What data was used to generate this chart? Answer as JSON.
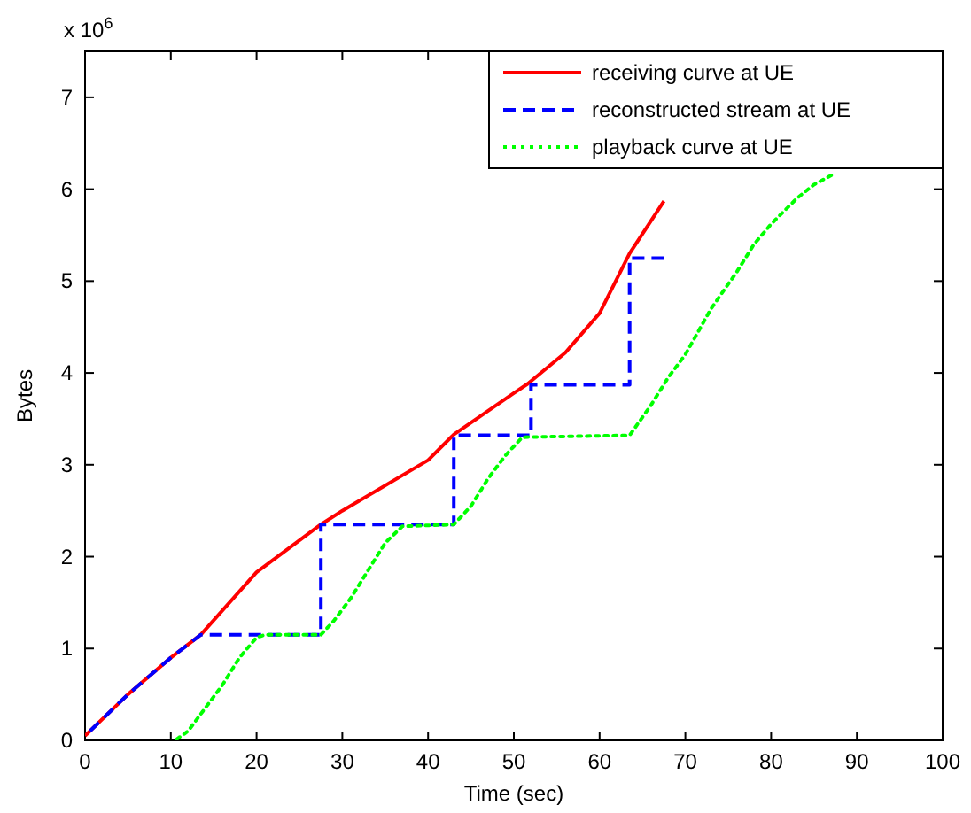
{
  "chart_data": {
    "type": "line",
    "xlabel": "Time (sec)",
    "ylabel": "Bytes",
    "annotations": [
      "x 10$^{6}$"
    ],
    "xlim": [
      0,
      100
    ],
    "ylim": [
      0,
      7.5
    ],
    "xticks": [
      0,
      10,
      20,
      30,
      40,
      50,
      60,
      70,
      80,
      90,
      100
    ],
    "yticks": [
      0,
      1,
      2,
      3,
      4,
      5,
      6,
      7
    ],
    "grid": false,
    "legend": "top right",
    "series": [
      {
        "name": "receiving curve at UE",
        "color": "#ff0000",
        "line_style": "solid",
        "x": [
          0,
          5,
          10,
          13.5,
          20,
          27.5,
          30,
          40,
          43,
          50,
          51.6,
          56,
          60,
          63.5,
          67.5
        ],
        "values": [
          0.05,
          0.5,
          0.9,
          1.15,
          1.83,
          2.35,
          2.5,
          3.05,
          3.33,
          3.78,
          3.88,
          4.22,
          4.65,
          5.3,
          5.87
        ]
      },
      {
        "name": "reconstructed stream at UE",
        "color": "#0000ff",
        "line_style": "dashed",
        "x": [
          0,
          5,
          10,
          13.5,
          27.5,
          27.5,
          43,
          43,
          52,
          52,
          63.5,
          63.5,
          67.5
        ],
        "values": [
          0.05,
          0.5,
          0.9,
          1.15,
          1.15,
          2.35,
          2.35,
          3.32,
          3.32,
          3.87,
          3.87,
          5.25,
          5.25
        ]
      },
      {
        "name": "playback curve at UE",
        "color": "#00ff00",
        "line_style": "dotted",
        "x": [
          10.5,
          12,
          14,
          16,
          18,
          20,
          21,
          27.5,
          29,
          31,
          33,
          35,
          37,
          43,
          45,
          47,
          49,
          51,
          63.5,
          66,
          68,
          70,
          73,
          76,
          78,
          80,
          83,
          85,
          87
        ],
        "values": [
          0,
          0.1,
          0.35,
          0.6,
          0.9,
          1.12,
          1.15,
          1.15,
          1.3,
          1.55,
          1.85,
          2.15,
          2.33,
          2.35,
          2.55,
          2.85,
          3.1,
          3.3,
          3.32,
          3.65,
          3.95,
          4.2,
          4.7,
          5.1,
          5.4,
          5.62,
          5.9,
          6.05,
          6.15
        ]
      }
    ]
  }
}
